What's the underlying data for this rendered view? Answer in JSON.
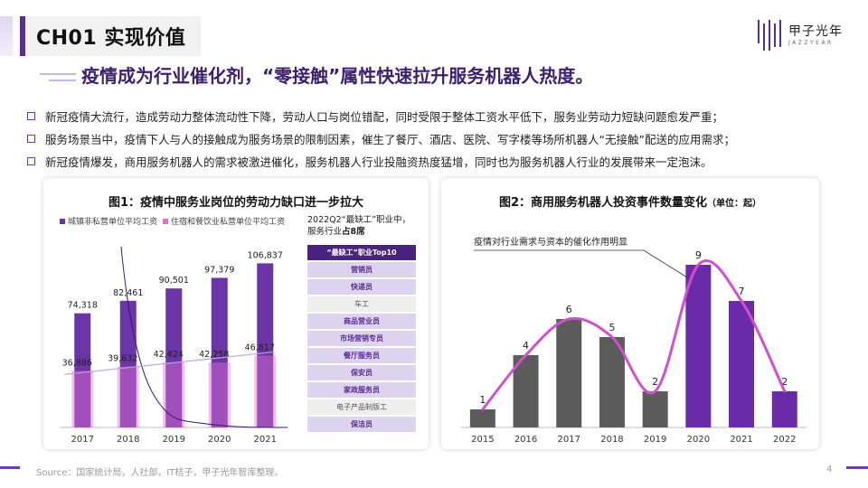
{
  "header": {
    "title": "CH01 实现价值"
  },
  "logo": {
    "cn": "甲子光年",
    "en": "JAZZYEAR"
  },
  "headline": "疫情成为行业催化剂，“零接触”属性快速拉升服务机器人热度。",
  "bullets": [
    "新冠疫情大流行，造成劳动力整体流动性下降，劳动人口与岗位错配，同时受限于整体工资水平低下，服务业劳动力短缺问题愈发严重；",
    "服务场景当中，疫情下人与人的接触成为服务场景的限制因素，催生了餐厅、酒店、医院、写字楼等场所机器人“无接触”配送的应用需求；",
    "新冠疫情爆发，商用服务机器人的需求被激进催化，服务机器人行业投融资热度猛增，同时也为服务机器人行业的发展带来一定泡沫。"
  ],
  "chart1": {
    "title": "图1：疫情中服务业岗位的劳动力缺口进一步拉大",
    "legend": [
      "城镇非私营单位平均工资",
      "住宿和餐饮业私营单位平均工资"
    ],
    "colors": {
      "series1": "#6b35a8",
      "series2": "#e070d0"
    }
  },
  "jobs": {
    "heading_line1": "2022Q2“最缺工”职业中，",
    "heading_line2_pre": "服务行业",
    "heading_line2_bold": "占8席",
    "title": "“最缺工”职业Top10",
    "items": [
      {
        "label": "营销员",
        "service": true
      },
      {
        "label": "快递员",
        "service": true
      },
      {
        "label": "车工",
        "service": false
      },
      {
        "label": "商品营业员",
        "service": true
      },
      {
        "label": "市场营销专员",
        "service": true
      },
      {
        "label": "餐厅服务员",
        "service": true
      },
      {
        "label": "保安员",
        "service": true
      },
      {
        "label": "家政服务员",
        "service": true
      },
      {
        "label": "电子产品制版工",
        "service": false
      },
      {
        "label": "保洁员",
        "service": true
      }
    ]
  },
  "chart2": {
    "title": "图2：商用服务机器人投资事件数量变化",
    "unit": "（单位：起）",
    "annotation": "疫情对行业需求与资本的催化作用明显"
  },
  "chart_data": [
    {
      "type": "bar",
      "categories": [
        "2017",
        "2018",
        "2019",
        "2020",
        "2021"
      ],
      "series": [
        {
          "name": "城镇非私营单位平均工资",
          "values": [
            74318,
            82461,
            90501,
            97379,
            106837
          ],
          "labels": [
            "74,318",
            "82,461",
            "90,501",
            "97,379",
            "106,837"
          ]
        },
        {
          "name": "住宿和餐饮业私营单位平均工资",
          "values": [
            36886,
            39632,
            42424,
            42258,
            46817
          ],
          "labels": [
            "36,886",
            "39,632",
            "42,424",
            "42,258",
            "46,817"
          ]
        }
      ],
      "title": "图1：疫情中服务业岗位的劳动力缺口进一步拉大",
      "xlabel": "",
      "ylabel": "",
      "ylim": [
        0,
        120000
      ],
      "legend_position": "top-left"
    },
    {
      "type": "bar",
      "categories": [
        "2015",
        "2016",
        "2017",
        "2018",
        "2019",
        "2020",
        "2021",
        "2022"
      ],
      "values": [
        1,
        4,
        6,
        5,
        2,
        9,
        7,
        2
      ],
      "title": "图2：商用服务机器人投资事件数量变化（单位：起）",
      "xlabel": "",
      "ylabel": "",
      "ylim": [
        0,
        10
      ],
      "highlight_categories": [
        "2020",
        "2021",
        "2022"
      ],
      "trend_line": true
    }
  ],
  "source": "Source：国家统计局，人社部，IT桔子，甲子光年智库整理。",
  "page_number": "4"
}
